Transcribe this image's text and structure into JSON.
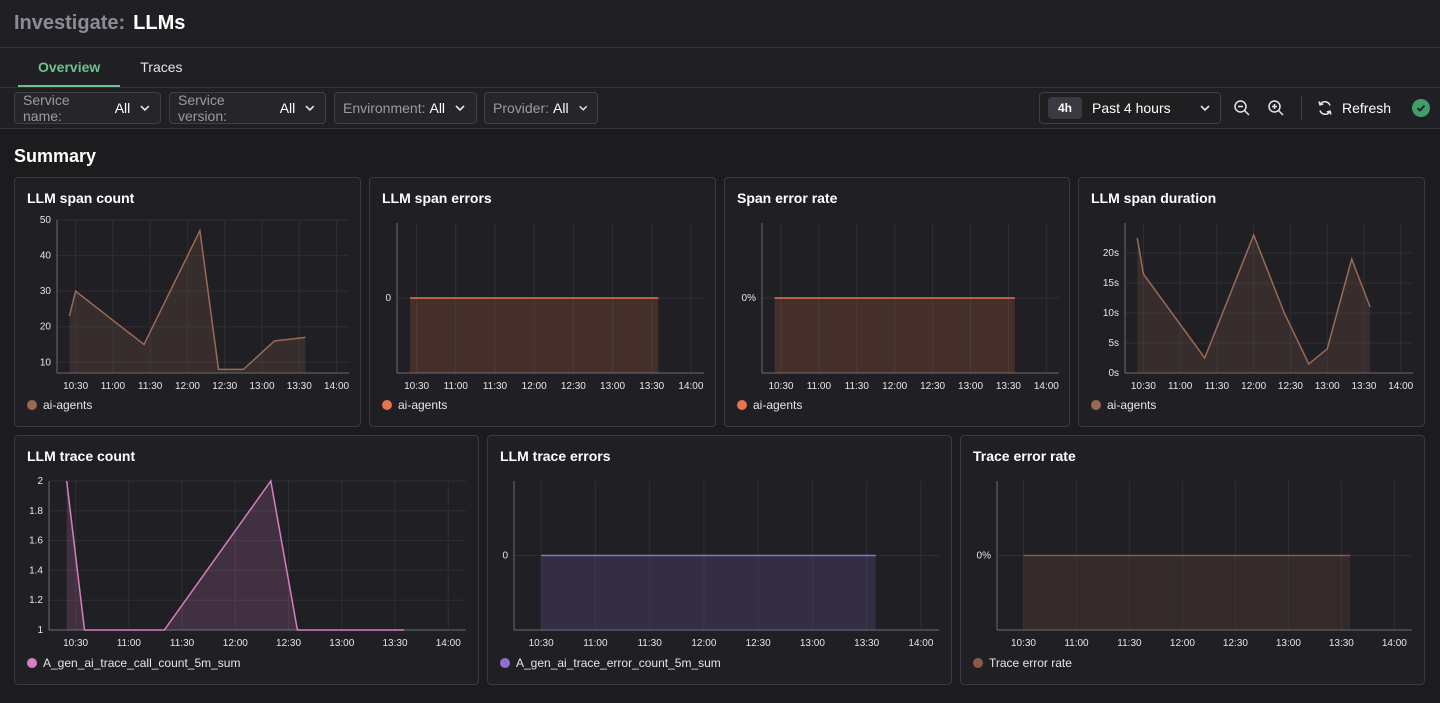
{
  "header": {
    "prefix": "Investigate:",
    "title": "LLMs"
  },
  "tabs": [
    {
      "label": "Overview",
      "active": true
    },
    {
      "label": "Traces",
      "active": false
    }
  ],
  "filters": [
    {
      "label": "Service name:",
      "value": "All"
    },
    {
      "label": "Service version:",
      "value": "All"
    },
    {
      "label": "Environment:",
      "value": "All"
    },
    {
      "label": "Provider:",
      "value": "All"
    }
  ],
  "time_picker": {
    "badge": "4h",
    "label": "Past 4 hours"
  },
  "toolbar": {
    "zoom_out_icon": "zoom-out-icon",
    "zoom_in_icon": "zoom-in-icon",
    "refresh_label": "Refresh",
    "status_color": "#3f9f6a"
  },
  "summary": {
    "title": "Summary"
  },
  "x_ticks": [
    "10:30",
    "11:00",
    "11:30",
    "12:00",
    "12:30",
    "13:00",
    "13:30",
    "14:00"
  ],
  "panels": {
    "span_count": {
      "title": "LLM span count",
      "legend": "ai-agents",
      "color": "#9a6a55"
    },
    "span_errors": {
      "title": "LLM span errors",
      "legend": "ai-agents",
      "color": "#e8734e"
    },
    "span_error_rate": {
      "title": "Span error rate",
      "legend": "ai-agents",
      "color": "#e8734e"
    },
    "span_duration": {
      "title": "LLM span duration",
      "legend": "ai-agents",
      "color": "#9a6a55"
    },
    "trace_count": {
      "title": "LLM trace count",
      "legend": "A_gen_ai_trace_call_count_5m_sum",
      "color": "#d77fc0"
    },
    "trace_errors": {
      "title": "LLM trace errors",
      "legend": "A_gen_ai_trace_error_count_5m_sum",
      "color": "#8d6fd1"
    },
    "trace_error_rate": {
      "title": "Trace error rate",
      "legend": "Trace error rate",
      "color": "#8a5a45"
    }
  },
  "chart_data": [
    {
      "type": "area",
      "title": "LLM span count",
      "series": [
        {
          "name": "ai-agents",
          "x": [
            "10:25",
            "10:30",
            "11:25",
            "12:10",
            "12:25",
            "12:45",
            "13:10",
            "13:35"
          ],
          "values": [
            23,
            30,
            15,
            47,
            8,
            8,
            16,
            17
          ]
        }
      ],
      "y_ticks": [
        "10",
        "20",
        "30",
        "40",
        "50"
      ],
      "ylim": [
        7,
        50
      ]
    },
    {
      "type": "area",
      "title": "LLM span errors",
      "series": [
        {
          "name": "ai-agents",
          "x": [
            "10:25",
            "13:35"
          ],
          "values": [
            0,
            0
          ]
        }
      ],
      "y_ticks": [
        "0"
      ]
    },
    {
      "type": "area",
      "title": "Span error rate",
      "series": [
        {
          "name": "ai-agents",
          "x": [
            "10:25",
            "13:35"
          ],
          "values": [
            0,
            0
          ]
        }
      ],
      "y_ticks": [
        "0%"
      ]
    },
    {
      "type": "area",
      "title": "LLM span duration",
      "series": [
        {
          "name": "ai-agents",
          "x": [
            "10:25",
            "10:30",
            "11:20",
            "12:00",
            "12:25",
            "12:45",
            "13:00",
            "13:20",
            "13:35"
          ],
          "values": [
            22.5,
            16.5,
            2.5,
            23,
            10,
            1.5,
            4,
            19,
            11
          ]
        }
      ],
      "y_ticks": [
        "0s",
        "5s",
        "10s",
        "15s",
        "20s"
      ],
      "ylim": [
        0,
        25
      ]
    },
    {
      "type": "area",
      "title": "LLM trace count",
      "series": [
        {
          "name": "A_gen_ai_trace_call_count_5m_sum",
          "x": [
            "10:25",
            "10:35",
            "11:20",
            "12:20",
            "12:35",
            "13:35"
          ],
          "values": [
            2,
            1,
            1,
            2,
            1,
            1
          ]
        }
      ],
      "y_ticks": [
        "1",
        "1.2",
        "1.4",
        "1.6",
        "1.8",
        "2"
      ],
      "ylim": [
        1,
        2
      ]
    },
    {
      "type": "area",
      "title": "LLM trace errors",
      "series": [
        {
          "name": "A_gen_ai_trace_error_count_5m_sum",
          "x": [
            "10:30",
            "13:35"
          ],
          "values": [
            0,
            0
          ]
        }
      ],
      "y_ticks": [
        "0"
      ]
    },
    {
      "type": "area",
      "title": "Trace error rate",
      "series": [
        {
          "name": "Trace error rate",
          "x": [
            "10:30",
            "13:35"
          ],
          "values": [
            0,
            0
          ]
        }
      ],
      "y_ticks": [
        "0%"
      ]
    }
  ]
}
